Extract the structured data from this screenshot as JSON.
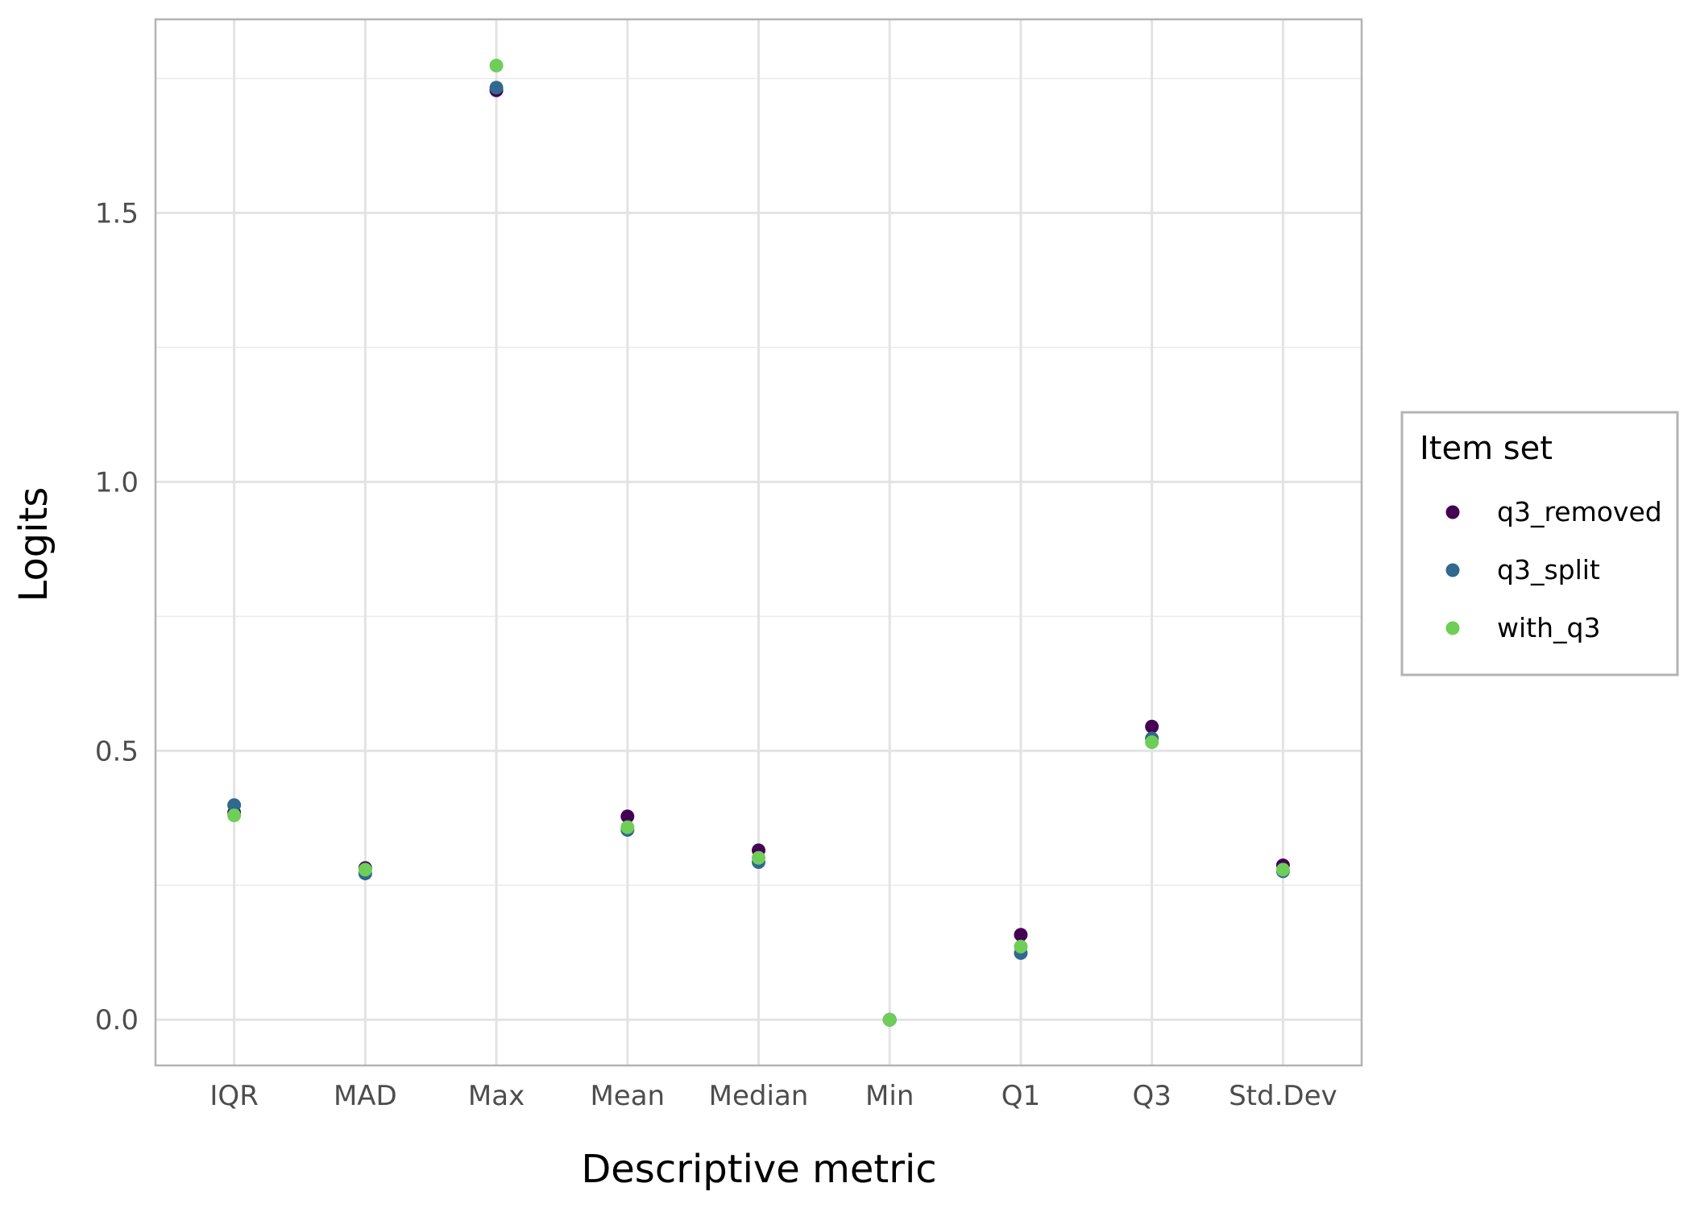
{
  "chart_data": {
    "type": "scatter",
    "xlabel": "Descriptive metric",
    "ylabel": "Logits",
    "categories": [
      "IQR",
      "MAD",
      "Max",
      "Mean",
      "Median",
      "Min",
      "Q1",
      "Q3",
      "Std.Dev"
    ],
    "ylim": [
      -0.085,
      1.86
    ],
    "yticks": [
      0.0,
      0.5,
      1.0,
      1.5
    ],
    "ytick_labels": [
      "0.0",
      "0.5",
      "1.0",
      "1.5"
    ],
    "grid": true,
    "legend": {
      "title": "Item set",
      "position": "right"
    },
    "series": [
      {
        "name": "q3_removed",
        "color": "#440154",
        "values": [
          0.385,
          0.282,
          1.728,
          0.378,
          0.315,
          0.0,
          0.158,
          0.545,
          0.287
        ]
      },
      {
        "name": "q3_split",
        "color": "#31688e",
        "values": [
          0.399,
          0.272,
          1.733,
          0.353,
          0.293,
          0.0,
          0.124,
          0.523,
          0.276
        ]
      },
      {
        "name": "with_q3",
        "color": "#6ece58",
        "values": [
          0.38,
          0.279,
          1.774,
          0.358,
          0.301,
          0.0,
          0.136,
          0.516,
          0.279
        ]
      }
    ]
  }
}
